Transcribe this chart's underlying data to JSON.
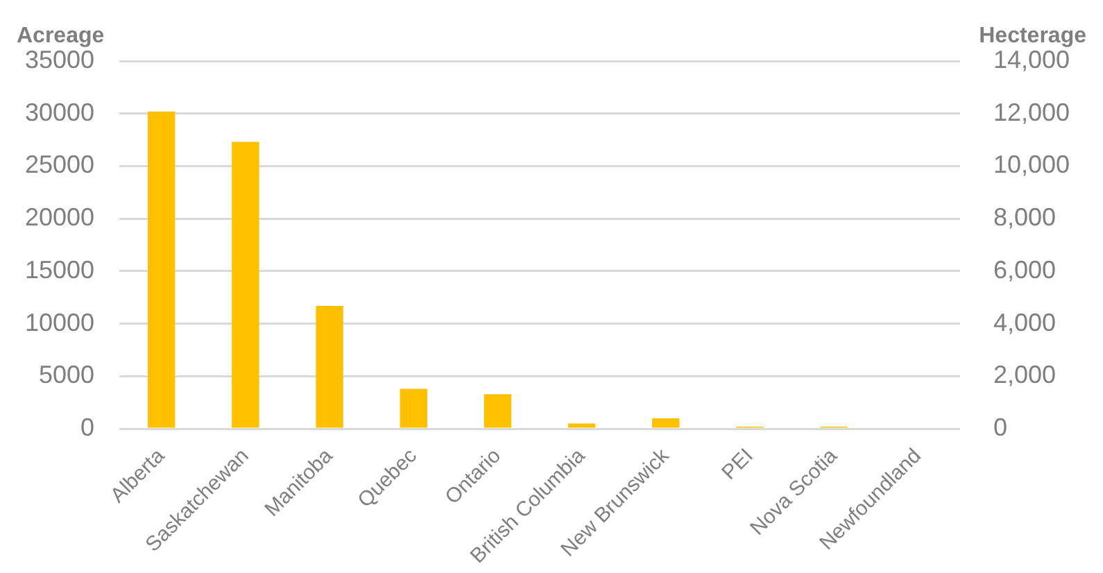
{
  "chart_data": {
    "type": "bar",
    "ylabel": "Acreage",
    "y2label": "Hecterage",
    "categories": [
      "Alberta",
      "Saskatchewan",
      "Manitoba",
      "Quebec",
      "Ontario",
      "British Columbia",
      "New Brunswick",
      "PEI",
      "Nova Scotia",
      "Newfoundland"
    ],
    "values": [
      30200,
      27300,
      11700,
      3800,
      3300,
      500,
      1000,
      200,
      200,
      0
    ],
    "color": "#ffc000",
    "ylim": [
      0,
      35000
    ],
    "yticks": [
      0,
      5000,
      10000,
      15000,
      20000,
      25000,
      30000,
      35000
    ],
    "y2lim": [
      0,
      14000
    ],
    "y2ticks": [
      {
        "value": 0,
        "label": "0"
      },
      {
        "value": 2000,
        "label": "2,000"
      },
      {
        "value": 4000,
        "label": "4,000"
      },
      {
        "value": 6000,
        "label": "6,000"
      },
      {
        "value": 8000,
        "label": "8,000"
      },
      {
        "value": 10000,
        "label": "10,000"
      },
      {
        "value": 12000,
        "label": "12,000"
      },
      {
        "value": 14000,
        "label": "14,000"
      }
    ],
    "grid": "y",
    "legend": false
  }
}
